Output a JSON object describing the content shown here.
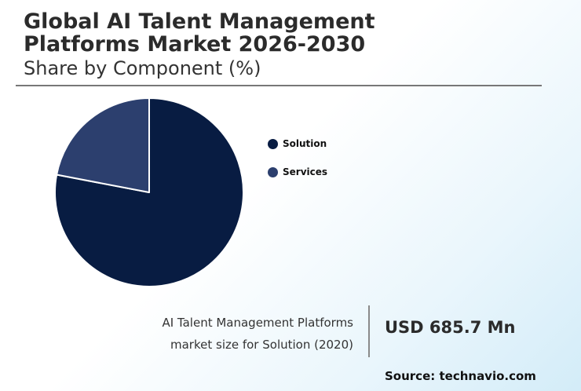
{
  "chart_data": {
    "type": "pie",
    "title_line1": "Global AI Talent Management",
    "title_line2": "Platforms Market 2026-2030",
    "subtitle": "Share by Component (%)",
    "categories": [
      "Solution",
      "Services"
    ],
    "values": [
      78,
      22
    ],
    "colors": [
      "#081c42",
      "#2c3f6e"
    ],
    "legend_position": "right"
  },
  "stat": {
    "caption_line1": "AI Talent Management Platforms",
    "caption_line2": "market size for Solution (2020)",
    "value": "USD 685.7 Mn"
  },
  "source": "Source: technavio.com"
}
